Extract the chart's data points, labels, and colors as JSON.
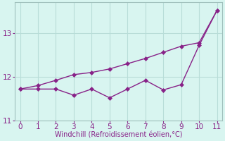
{
  "xlabel": "Windchill (Refroidissement éolien,°C)",
  "x": [
    0,
    1,
    2,
    3,
    4,
    5,
    6,
    7,
    8,
    9,
    10,
    11
  ],
  "line1": [
    11.72,
    11.72,
    11.72,
    11.58,
    11.72,
    11.52,
    11.72,
    11.92,
    11.7,
    11.82,
    12.72,
    13.52
  ],
  "line2": [
    11.72,
    11.8,
    11.92,
    12.05,
    12.1,
    12.18,
    12.3,
    12.42,
    12.56,
    12.7,
    12.78,
    13.52
  ],
  "ylim_min": 11.0,
  "ylim_max": 13.7,
  "yticks": [
    11,
    12,
    13
  ],
  "xticks": [
    0,
    1,
    2,
    3,
    4,
    5,
    6,
    7,
    8,
    9,
    10,
    11
  ],
  "xlim_min": -0.3,
  "xlim_max": 11.3,
  "line_color": "#882288",
  "bg_color": "#d8f5f0",
  "grid_color": "#b8ddd8",
  "spine_color": "#a0c0bc",
  "tick_color": "#882288",
  "label_color": "#882288",
  "markersize": 3,
  "linewidth": 1.0,
  "xlabel_fontsize": 7,
  "tick_fontsize": 7.5
}
